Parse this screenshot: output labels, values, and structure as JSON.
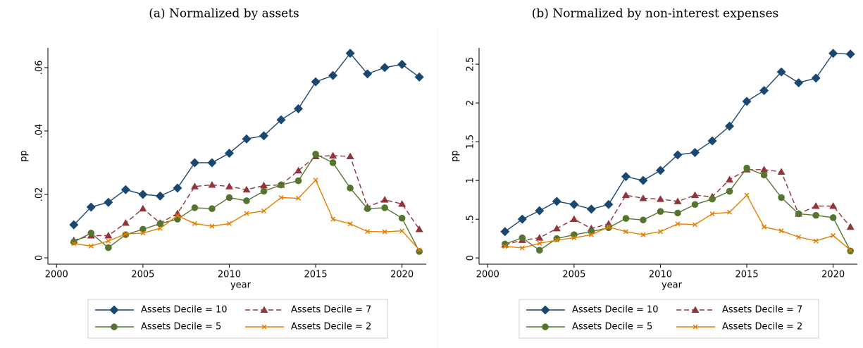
{
  "chart_data": [
    {
      "type": "line",
      "title": "(a) Normalized by assets",
      "xlabel": "year",
      "ylabel": "pp",
      "x": [
        2001,
        2002,
        2003,
        2004,
        2005,
        2006,
        2007,
        2008,
        2009,
        2010,
        2011,
        2012,
        2013,
        2014,
        2015,
        2016,
        2017,
        2018,
        2019,
        2020,
        2021
      ],
      "xlim": [
        1999.5,
        2021.4
      ],
      "xticks": [
        2000,
        2005,
        2010,
        2015,
        2020
      ],
      "ylim": [
        -0.002,
        0.0662
      ],
      "yticks": [
        0,
        {
          "value": 0.02,
          "label": ".02"
        },
        {
          "value": 0.04,
          "label": ".04"
        },
        {
          "value": 0.06,
          "label": ".06"
        }
      ],
      "series": [
        {
          "name": "Assets Decile = 10",
          "color": "#1a476f",
          "marker": "diamond",
          "dashed": false,
          "values": [
            0.0104,
            0.016,
            0.0175,
            0.0215,
            0.02,
            0.0195,
            0.022,
            0.03,
            0.03,
            0.033,
            0.0375,
            0.0385,
            0.0435,
            0.047,
            0.0555,
            0.0575,
            0.0645,
            0.058,
            0.06,
            0.061,
            0.057
          ]
        },
        {
          "name": "Assets Decile = 7",
          "color": "#90353b",
          "marker": "triangle",
          "dashed": true,
          "values": [
            0.0055,
            0.007,
            0.007,
            0.011,
            0.0155,
            0.011,
            0.014,
            0.0225,
            0.023,
            0.0225,
            0.0215,
            0.0228,
            0.023,
            0.0275,
            0.032,
            0.0322,
            0.032,
            0.016,
            0.0183,
            0.017,
            0.009
          ]
        },
        {
          "name": "Assets Decile = 5",
          "color": "#55752f",
          "marker": "circle",
          "dashed": false,
          "values": [
            0.005,
            0.0078,
            0.0032,
            0.0073,
            0.009,
            0.0108,
            0.0122,
            0.0158,
            0.0155,
            0.019,
            0.018,
            0.021,
            0.023,
            0.0243,
            0.0327,
            0.03,
            0.022,
            0.0155,
            0.0158,
            0.0125,
            0.002
          ]
        },
        {
          "name": "Assets Decile = 2",
          "color": "#e37e00",
          "marker": "x",
          "dashed": false,
          "values": [
            0.0045,
            0.0037,
            0.0053,
            0.0075,
            0.0078,
            0.0093,
            0.0133,
            0.0108,
            0.01,
            0.0108,
            0.014,
            0.0148,
            0.019,
            0.0188,
            0.0245,
            0.0122,
            0.0107,
            0.0083,
            0.0082,
            0.0085,
            0.0025
          ]
        }
      ]
    },
    {
      "type": "line",
      "title": "(b) Normalized by non-interest expenses",
      "xlabel": "year",
      "ylabel": "pp",
      "x": [
        2001,
        2002,
        2003,
        2004,
        2005,
        2006,
        2007,
        2008,
        2009,
        2010,
        2011,
        2012,
        2013,
        2014,
        2015,
        2016,
        2017,
        2018,
        2019,
        2020,
        2021
      ],
      "xlim": [
        1999.5,
        2021.4
      ],
      "xticks": [
        2000,
        2005,
        2010,
        2015,
        2020
      ],
      "ylim": [
        -0.08,
        2.71
      ],
      "yticks": [
        0,
        {
          "value": 0.5,
          "label": ".5"
        },
        1,
        1.5,
        2,
        2.5
      ],
      "series": [
        {
          "name": "Assets Decile = 10",
          "color": "#1a476f",
          "marker": "diamond",
          "dashed": false,
          "values": [
            0.34,
            0.5,
            0.61,
            0.73,
            0.69,
            0.63,
            0.69,
            1.05,
            1.0,
            1.13,
            1.33,
            1.36,
            1.51,
            1.7,
            2.02,
            2.16,
            2.4,
            2.26,
            2.32,
            2.64,
            2.63
          ]
        },
        {
          "name": "Assets Decile = 7",
          "color": "#90353b",
          "marker": "triangle",
          "dashed": true,
          "values": [
            0.17,
            0.23,
            0.26,
            0.38,
            0.5,
            0.38,
            0.44,
            0.81,
            0.77,
            0.76,
            0.73,
            0.81,
            0.79,
            1.01,
            1.14,
            1.14,
            1.11,
            0.57,
            0.67,
            0.67,
            0.4
          ]
        },
        {
          "name": "Assets Decile = 5",
          "color": "#55752f",
          "marker": "circle",
          "dashed": false,
          "values": [
            0.18,
            0.26,
            0.1,
            0.25,
            0.3,
            0.34,
            0.39,
            0.51,
            0.49,
            0.6,
            0.58,
            0.69,
            0.76,
            0.86,
            1.16,
            1.07,
            0.78,
            0.57,
            0.55,
            0.52,
            0.09
          ]
        },
        {
          "name": "Assets Decile = 2",
          "color": "#e37e00",
          "marker": "x",
          "dashed": false,
          "values": [
            0.15,
            0.13,
            0.19,
            0.23,
            0.26,
            0.3,
            0.4,
            0.34,
            0.3,
            0.34,
            0.44,
            0.43,
            0.57,
            0.59,
            0.81,
            0.4,
            0.35,
            0.27,
            0.22,
            0.29,
            0.1
          ]
        }
      ]
    }
  ]
}
